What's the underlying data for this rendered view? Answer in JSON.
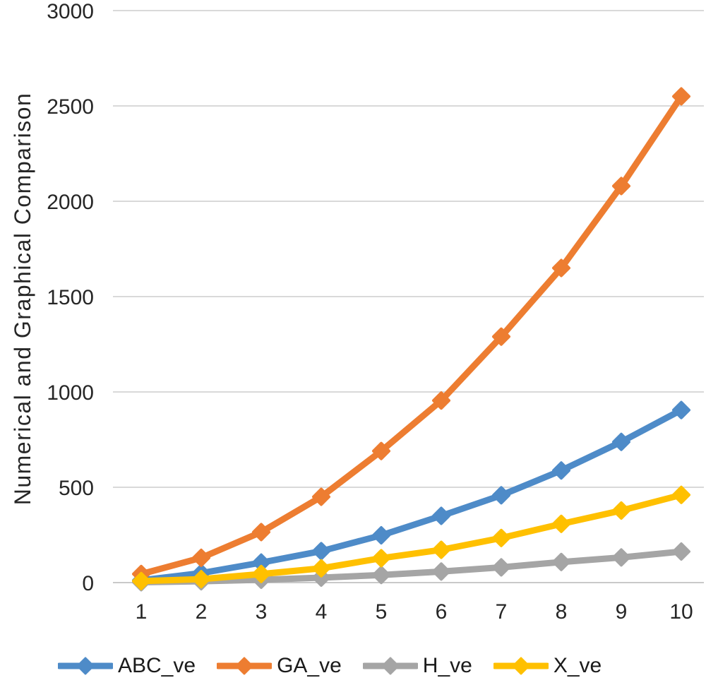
{
  "colors": {
    "background": "#FFFFFF",
    "grid": "#D9D9D9",
    "axis_line": "#C9C9C9",
    "tick_text": "#262626",
    "legend_text": "#1A1A1A"
  },
  "chart_data": {
    "type": "line",
    "title": "",
    "xlabel": "",
    "ylabel": "Numerical and Graphical Comparison",
    "x": [
      1,
      2,
      3,
      4,
      5,
      6,
      7,
      8,
      9,
      10
    ],
    "ylim": [
      0,
      3000
    ],
    "yticks": [
      0,
      500,
      1000,
      1500,
      2000,
      2500,
      3000
    ],
    "grid": true,
    "marker": "diamond",
    "legend_position": "bottom",
    "series": [
      {
        "name": "ABC_ve",
        "color": "#4E8BC8",
        "values": [
          12,
          50,
          105,
          165,
          248,
          350,
          458,
          588,
          738,
          905
        ]
      },
      {
        "name": "GA_ve",
        "color": "#ED7D31",
        "values": [
          45,
          130,
          265,
          450,
          690,
          955,
          1290,
          1650,
          2080,
          2550
        ]
      },
      {
        "name": "H_ve",
        "color": "#A5A5A5",
        "values": [
          2,
          7,
          15,
          26,
          40,
          58,
          80,
          108,
          132,
          163
        ]
      },
      {
        "name": "X_ve",
        "color": "#FFC000",
        "values": [
          8,
          18,
          45,
          75,
          128,
          172,
          234,
          308,
          378,
          460
        ]
      }
    ]
  }
}
